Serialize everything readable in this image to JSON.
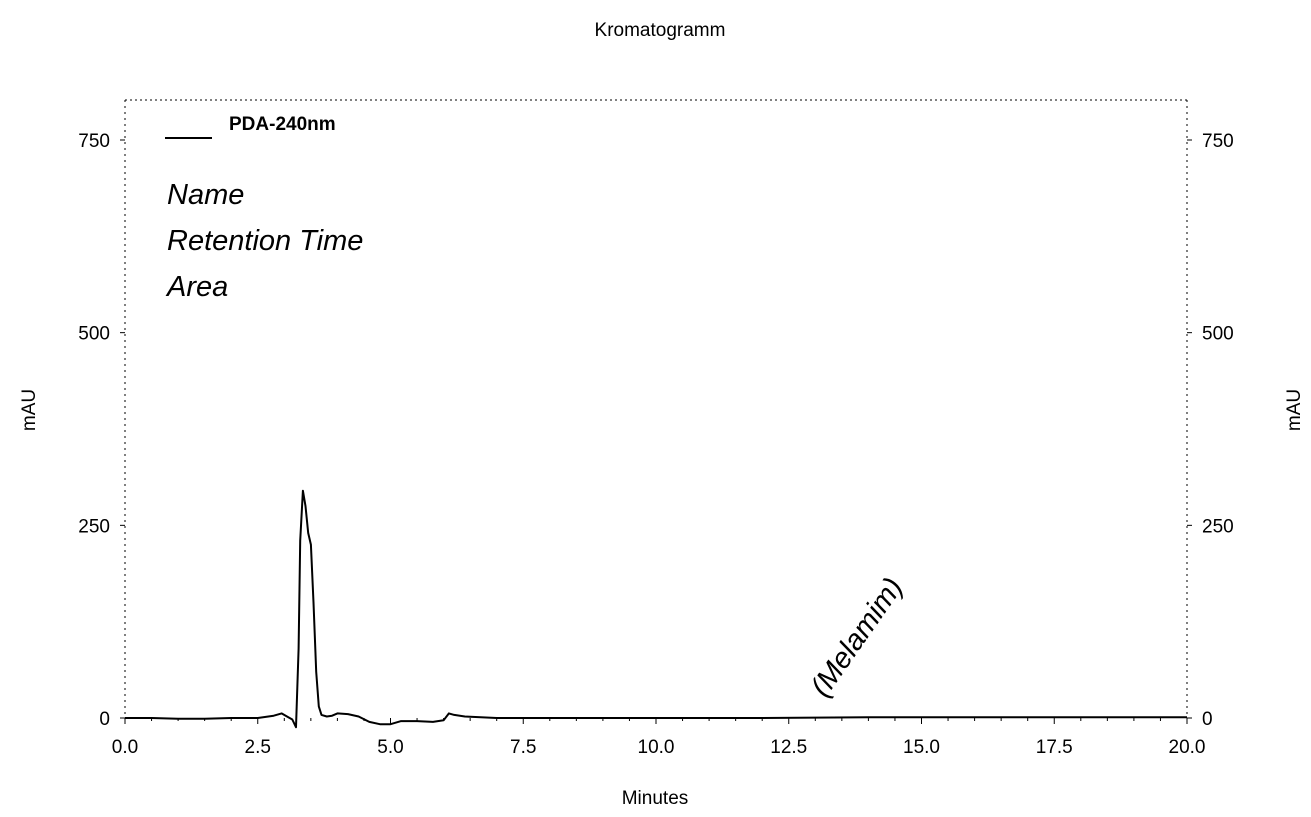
{
  "chart_data": {
    "type": "line",
    "title": "Kromatogramm",
    "xlabel": "Minutes",
    "ylabel": "mAU",
    "ylabel_right": "mAU",
    "xlim": [
      0,
      20
    ],
    "ylim": [
      0,
      800
    ],
    "x_ticks": [
      "0.0",
      "2.5",
      "5.0",
      "7.5",
      "10.0",
      "12.5",
      "15.0",
      "17.5",
      "20.0"
    ],
    "y_ticks": [
      "0",
      "250",
      "500",
      "750"
    ],
    "legend": {
      "position": "top-left",
      "entries": [
        "PDA-240nm"
      ]
    },
    "info_labels": [
      "Name",
      "Retention Time",
      "Area"
    ],
    "annotations": [
      {
        "text": "(Melamim)",
        "x": 13.0,
        "y": 20
      }
    ],
    "series": [
      {
        "name": "PDA-240nm",
        "color": "#000000",
        "x": [
          0.0,
          0.5,
          1.0,
          1.5,
          2.0,
          2.5,
          2.8,
          2.95,
          3.05,
          3.15,
          3.22,
          3.27,
          3.3,
          3.35,
          3.4,
          3.45,
          3.5,
          3.55,
          3.6,
          3.65,
          3.7,
          3.8,
          3.9,
          4.0,
          4.2,
          4.4,
          4.6,
          4.8,
          5.0,
          5.2,
          5.5,
          5.8,
          6.0,
          6.1,
          6.2,
          6.4,
          7.0,
          8.0,
          10.0,
          12.0,
          14.0,
          16.0,
          18.0,
          20.0
        ],
        "y": [
          0,
          0,
          -1,
          -1,
          0,
          0,
          3,
          6,
          2,
          -2,
          -12,
          90,
          230,
          295,
          275,
          240,
          225,
          150,
          60,
          15,
          4,
          2,
          3,
          6,
          5,
          2,
          -5,
          -8,
          -8,
          -4,
          -4,
          -5,
          -3,
          6,
          4,
          2,
          0,
          0,
          0,
          0,
          1,
          1,
          1,
          1
        ]
      }
    ]
  }
}
